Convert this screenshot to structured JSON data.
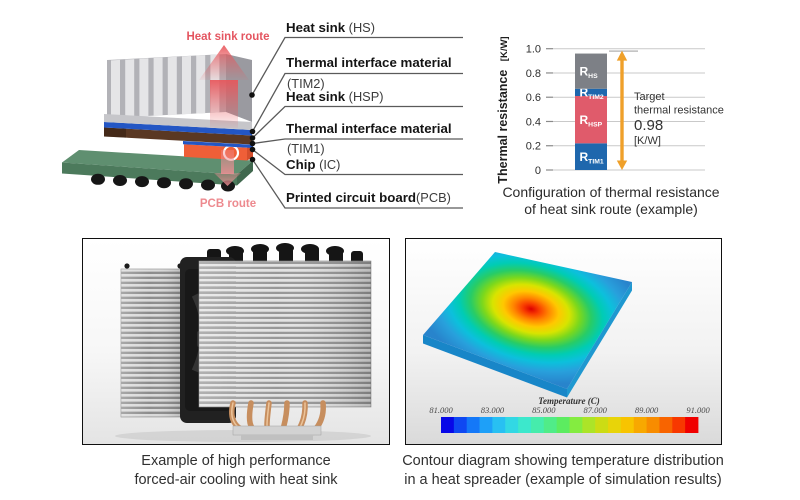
{
  "illustration": {
    "heat_sink_route_label": "Heat sink route",
    "pcb_route_label": "PCB route",
    "labels": [
      {
        "bold": "Heat sink",
        "paren": " (HS)"
      },
      {
        "bold": "Thermal interface material",
        "paren": "(TIM2)"
      },
      {
        "bold": "Heat sink",
        "paren": " (HSP)"
      },
      {
        "bold": "Thermal interface material",
        "paren": "(TIM1)"
      },
      {
        "bold": "Chip",
        "paren": " (IC)"
      },
      {
        "bold": "Printed circuit board",
        "paren": "(PCB)"
      }
    ],
    "colors": {
      "pcb_top": "#5f8f70",
      "pcb_front": "#4c7a5c",
      "pcb_side": "#40684e",
      "chip": "#ef5f38",
      "chip_side": "#d54e2c",
      "tim_blue": "#2356c4",
      "hsp_brown": "#5a3823",
      "heatsink_front": "#b2b2b7",
      "heatsink_side": "#9a9aa0",
      "heatsink_base": "#c6c6ca",
      "fin_light": "#e5e5e7",
      "arrow_red": "#e8555a",
      "arrow_pink": "#ef8f94",
      "route_text_red": "#e45560",
      "route_text_pink": "#ed8a8f"
    }
  },
  "chart_data": {
    "type": "bar",
    "title": "Configuration of thermal resistance of heat sink route (example)",
    "ylabel": "Thermal resistance",
    "ylabel_unit": "[K/W]",
    "ylim": [
      0,
      1.0
    ],
    "ytick_labels": [
      "0",
      "0.2",
      "0.4",
      "0.6",
      "0.8",
      "1.0"
    ],
    "grid": true,
    "legend": "none",
    "bar_total": 0.96,
    "segments": [
      {
        "prefix": "R",
        "sub": "TIM1",
        "value": 0.22,
        "color": "#1f67ad"
      },
      {
        "prefix": "R",
        "sub": "HSP",
        "value": 0.39,
        "color": "#e05b6b"
      },
      {
        "prefix": "R",
        "sub": "TIM2",
        "value": 0.06,
        "color": "#1f67ad"
      },
      {
        "prefix": "R",
        "sub": "HS",
        "value": 0.29,
        "color": "#7d8086"
      }
    ],
    "target": {
      "line1": "Target",
      "line2": "thermal resistance",
      "value": "0.98",
      "unit": "[K/W]",
      "arrow_color": "#efa02a"
    }
  },
  "contour": {
    "colorbar_title": "Temperature (C)",
    "colorbar_ticks": [
      "81.000",
      "83.000",
      "85.000",
      "87.000",
      "89.000",
      "91.000"
    ],
    "palette": [
      "#0808e8",
      "#0f48f2",
      "#1478f8",
      "#1ea0f8",
      "#28c0f2",
      "#32d8e4",
      "#3ce8cc",
      "#46ecac",
      "#50ec88",
      "#5cec60",
      "#84ec40",
      "#ace428",
      "#ccdc14",
      "#e8d409",
      "#f8c400",
      "#f8a800",
      "#f88c00",
      "#f86400",
      "#f83800",
      "#f00000"
    ]
  },
  "captions": {
    "chart_line1": "Configuration of thermal resistance",
    "chart_line2": "of heat sink route (example)",
    "photo_line1": "Example of high performance",
    "photo_line2": "forced-air cooling with heat sink",
    "contour_line1": "Contour diagram showing temperature distribution",
    "contour_line2": "in a heat spreader (example of simulation results)"
  }
}
